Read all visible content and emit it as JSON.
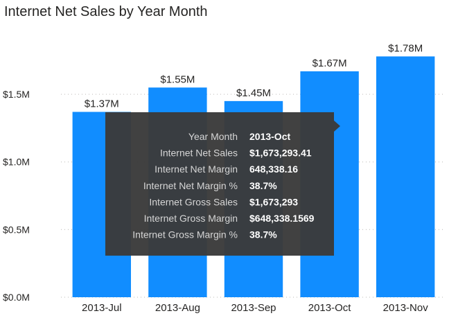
{
  "chart_data": {
    "type": "bar",
    "title": "Internet Net Sales by Year Month",
    "categories": [
      "2013-Jul",
      "2013-Aug",
      "2013-Sep",
      "2013-Oct",
      "2013-Nov"
    ],
    "values": [
      1.37,
      1.55,
      1.45,
      1.67,
      1.78
    ],
    "value_labels": [
      "$1.37M",
      "$1.55M",
      "$1.45M",
      "$1.67M",
      "$1.78M"
    ],
    "ylim": [
      0,
      1.9
    ],
    "y_ticks": [
      0,
      0.5,
      1.0,
      1.5
    ],
    "y_tick_labels": [
      "$0.0M",
      "$0.5M",
      "$1.0M",
      "$1.5M"
    ],
    "xlabel": "",
    "ylabel": "",
    "grid": true,
    "bar_color": "#118DFF"
  },
  "tooltip": {
    "category": "2013-Oct",
    "rows": [
      {
        "key": "Year Month",
        "value": "2013-Oct"
      },
      {
        "key": "Internet Net Sales",
        "value": "$1,673,293.41"
      },
      {
        "key": "Internet Net Margin",
        "value": "648,338.16"
      },
      {
        "key": "Internet Net Margin %",
        "value": "38.7%"
      },
      {
        "key": "Internet Gross Sales",
        "value": "$1,673,293"
      },
      {
        "key": "Internet Gross Margin",
        "value": "$648,338.1569"
      },
      {
        "key": "Internet Gross Margin %",
        "value": "38.7%"
      }
    ]
  }
}
